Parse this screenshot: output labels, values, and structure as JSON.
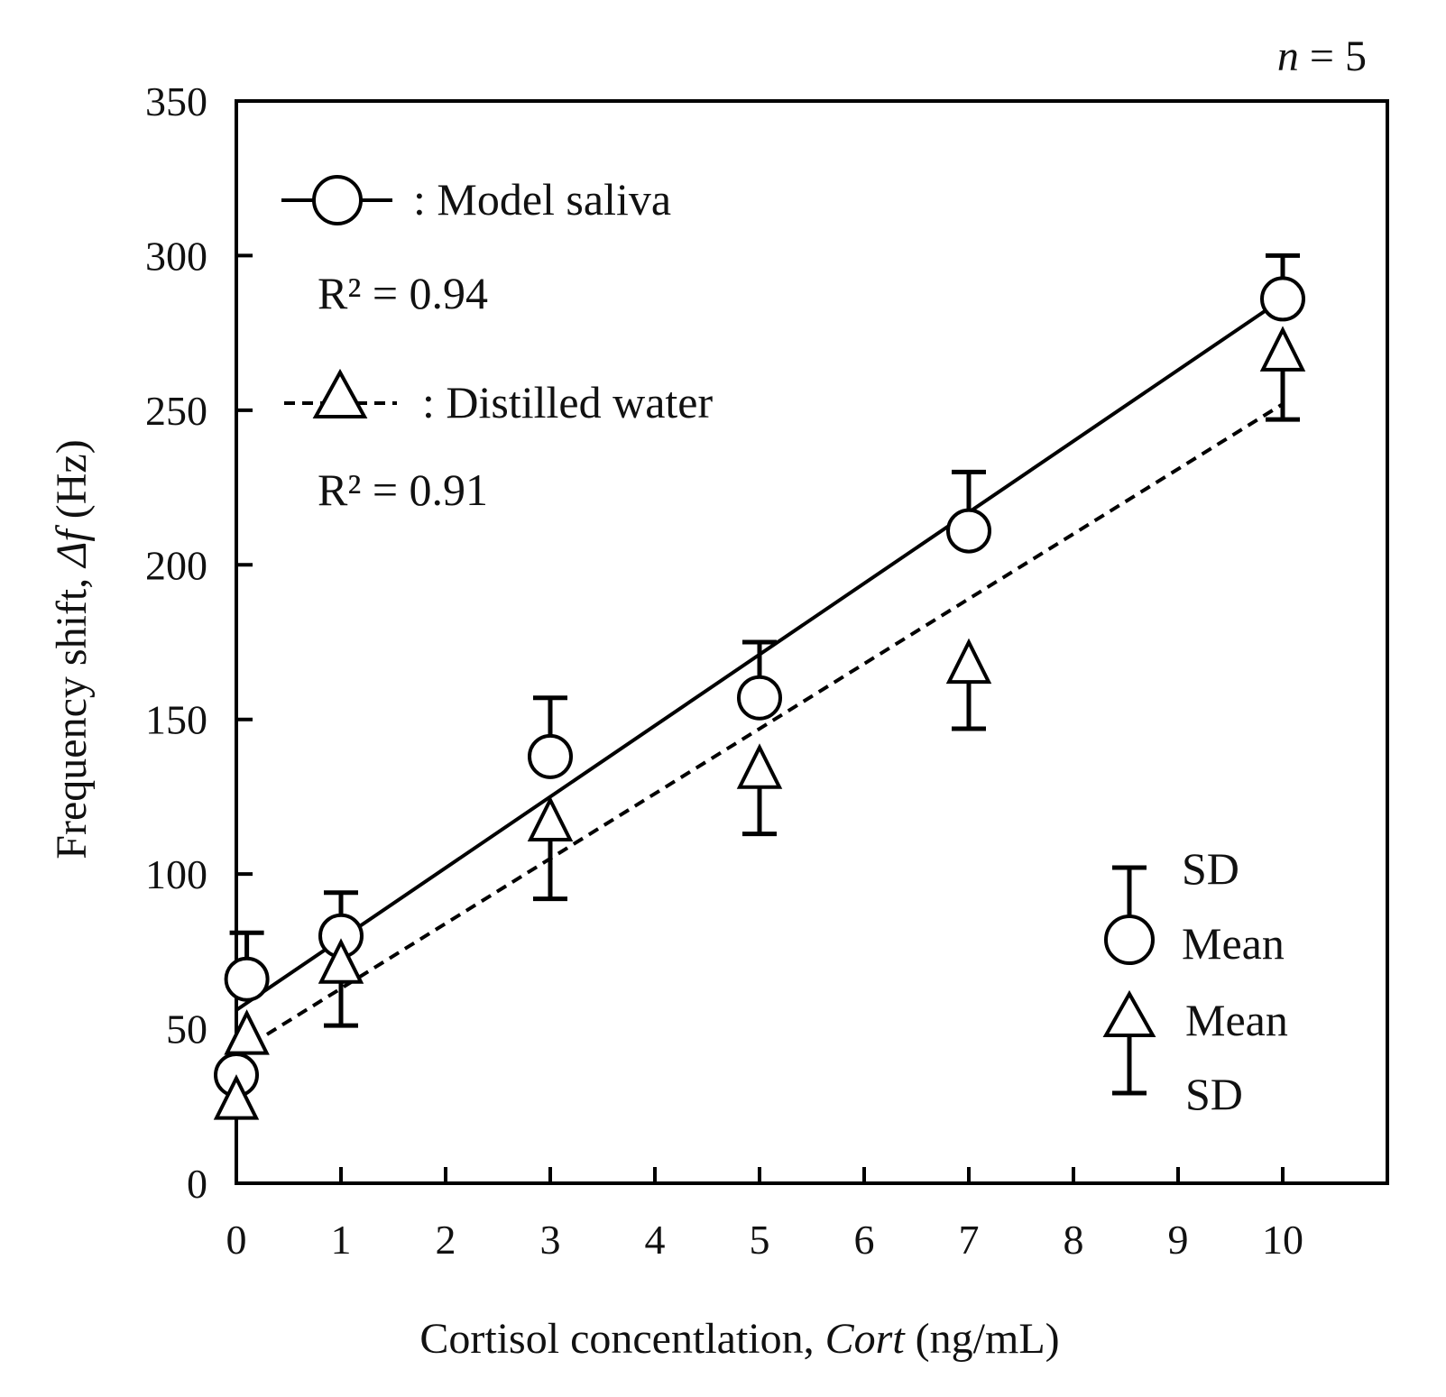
{
  "chart_data": {
    "type": "scatter",
    "title": "",
    "annotation_n": "n = 5",
    "annotation_n_var": "n",
    "annotation_n_rest": " = 5",
    "xlabel": "Cortisol concentlation, Cort (ng/mL)",
    "xlabel_parts": {
      "pre": "Cortisol concentlation, ",
      "var": "Cort",
      "post": " (ng/mL)"
    },
    "ylabel": "Frequency shift, Δf (Hz)",
    "ylabel_parts": {
      "pre": "Frequency shift, ",
      "var": "Δf",
      "post": " (Hz)"
    },
    "xlim": [
      0,
      11
    ],
    "ylim": [
      0,
      350
    ],
    "x_ticks": [
      0,
      1,
      2,
      3,
      4,
      5,
      6,
      7,
      8,
      9,
      10
    ],
    "x_tick_labels": [
      "0",
      "1",
      "2",
      "3",
      "4",
      "5",
      "6",
      "7",
      "8",
      "9",
      "10"
    ],
    "y_ticks": [
      0,
      50,
      100,
      150,
      200,
      250,
      300,
      350
    ],
    "y_tick_labels": [
      "0",
      "50",
      "100",
      "150",
      "200",
      "250",
      "300",
      "350"
    ],
    "grid": false,
    "series": [
      {
        "name": "Model saliva",
        "legend_label": ": Model saliva",
        "marker": "circle",
        "line_style": "solid",
        "r_squared_label": "R² = 0.94",
        "error_direction": "up",
        "x": [
          0,
          0.1,
          1,
          3,
          5,
          7,
          10
        ],
        "mean": [
          35,
          66,
          80,
          138,
          157,
          211,
          286
        ],
        "sd": [
          0,
          15,
          14,
          19,
          18,
          19,
          14
        ],
        "fit": {
          "intercept": 56,
          "slope": 23
        }
      },
      {
        "name": "Distilled water",
        "legend_label": ": Distilled water",
        "marker": "triangle",
        "line_style": "dashed",
        "r_squared_label": "R² = 0.91",
        "error_direction": "down",
        "x": [
          0,
          0.1,
          1,
          3,
          5,
          7,
          10
        ],
        "mean": [
          26,
          47,
          70,
          116,
          133,
          167,
          268
        ],
        "sd": [
          0,
          0,
          19,
          24,
          20,
          20,
          21
        ],
        "fit": {
          "intercept": 42,
          "slope": 21
        }
      }
    ],
    "key": {
      "circle_sd": "SD",
      "circle_mean": "Mean",
      "triangle_mean": "Mean",
      "triangle_sd": "SD"
    }
  }
}
